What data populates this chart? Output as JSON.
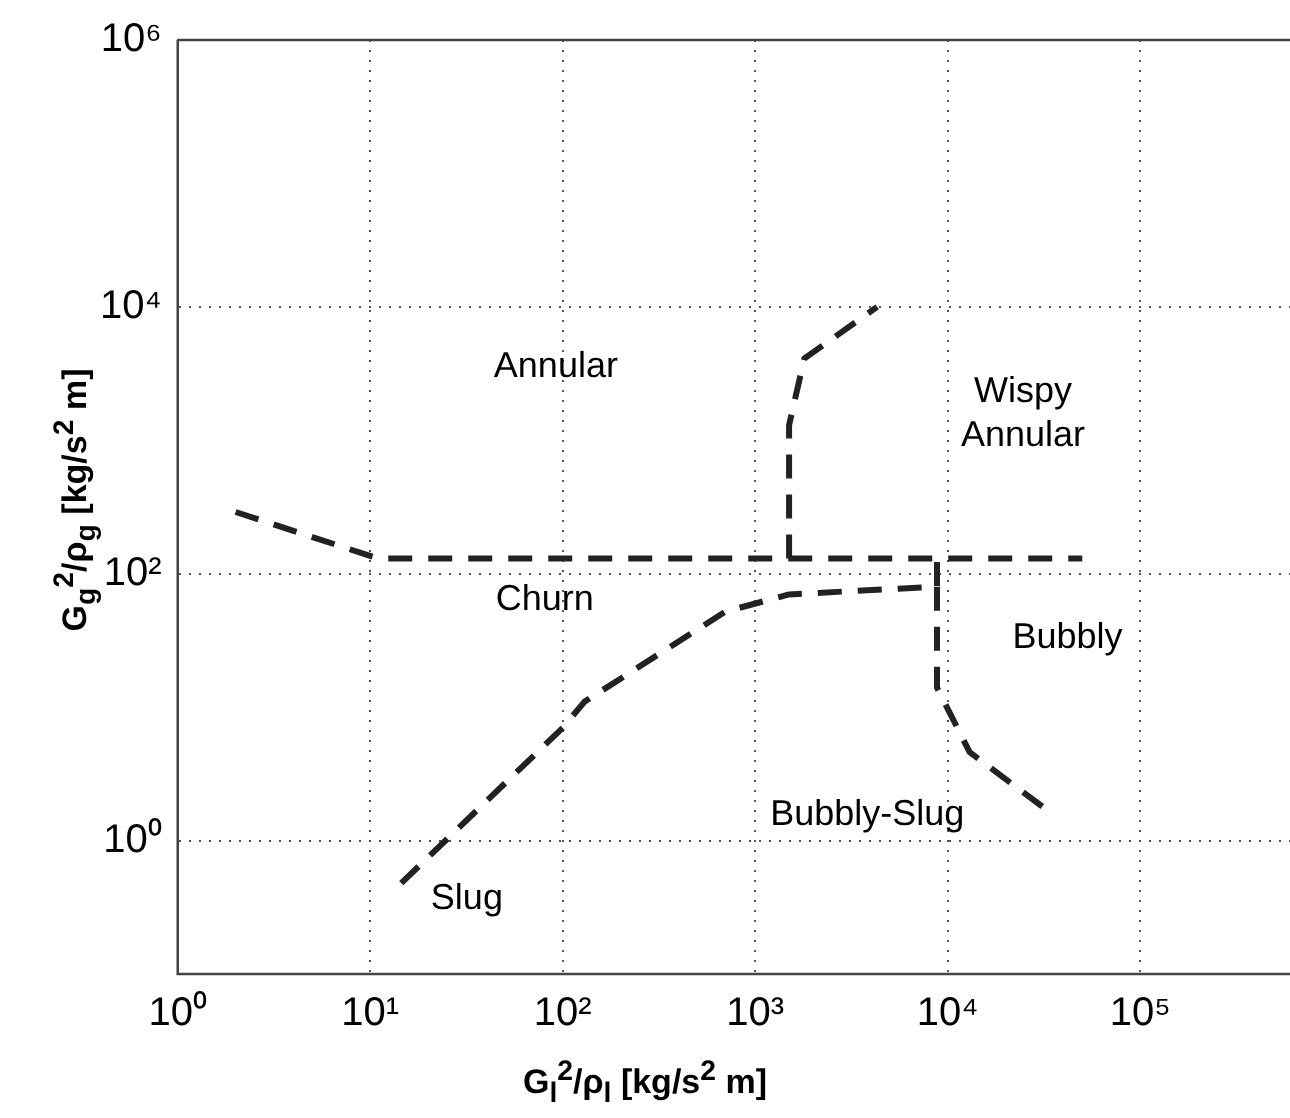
{
  "chart_data": {
    "type": "line",
    "xlabel": "G$_{l}$$^{2}$/ρ$_{l}$ [kg/s$^{2}$ m]",
    "ylabel": "G$_{g}$$^{2}$/ρ$_{g}$ [kg/s$^{2}$ m]",
    "log": "xy",
    "grid": true,
    "legend": false,
    "marker": "none",
    "line_style": "dashed",
    "xlim": [
      1,
      600000
    ],
    "ylim": [
      0.1,
      1000000
    ],
    "xticks": [
      {
        "value": 1,
        "label": "10⁰"
      },
      {
        "value": 10,
        "label": "10¹"
      },
      {
        "value": 100,
        "label": "10²"
      },
      {
        "value": 1000,
        "label": "10³"
      },
      {
        "value": 10000,
        "label": "10⁴"
      },
      {
        "value": 100000,
        "label": "10⁵"
      }
    ],
    "yticks": [
      {
        "value": 1,
        "label": "10⁰"
      },
      {
        "value": 100,
        "label": "10²"
      },
      {
        "value": 10000,
        "label": "10⁴"
      },
      {
        "value": 1000000,
        "label": "10⁶"
      }
    ],
    "series": [
      {
        "color": "#222222",
        "x": [
          2,
          11,
          50000
        ],
        "values": [
          290,
          130,
          130
        ]
      },
      {
        "color": "#222222",
        "x": [
          1500,
          1500,
          1800,
          4300
        ],
        "values": [
          130,
          1300,
          4100,
          10000
        ]
      },
      {
        "color": "#222222",
        "x": [
          14.5,
          100,
          130,
          700,
          1500,
          8800,
          8800
        ],
        "values": [
          0.48,
          7,
          11,
          52,
          70,
          80,
          130
        ]
      },
      {
        "color": "#222222",
        "x": [
          8800,
          8800,
          13000,
          31000
        ],
        "values": [
          80,
          14,
          4.6,
          1.8
        ]
      }
    ],
    "annotations": [
      "Annular",
      "Wispy\nAnnular",
      "Churn",
      "Bubbly",
      "Bubbly-Slug",
      "Slug"
    ]
  }
}
